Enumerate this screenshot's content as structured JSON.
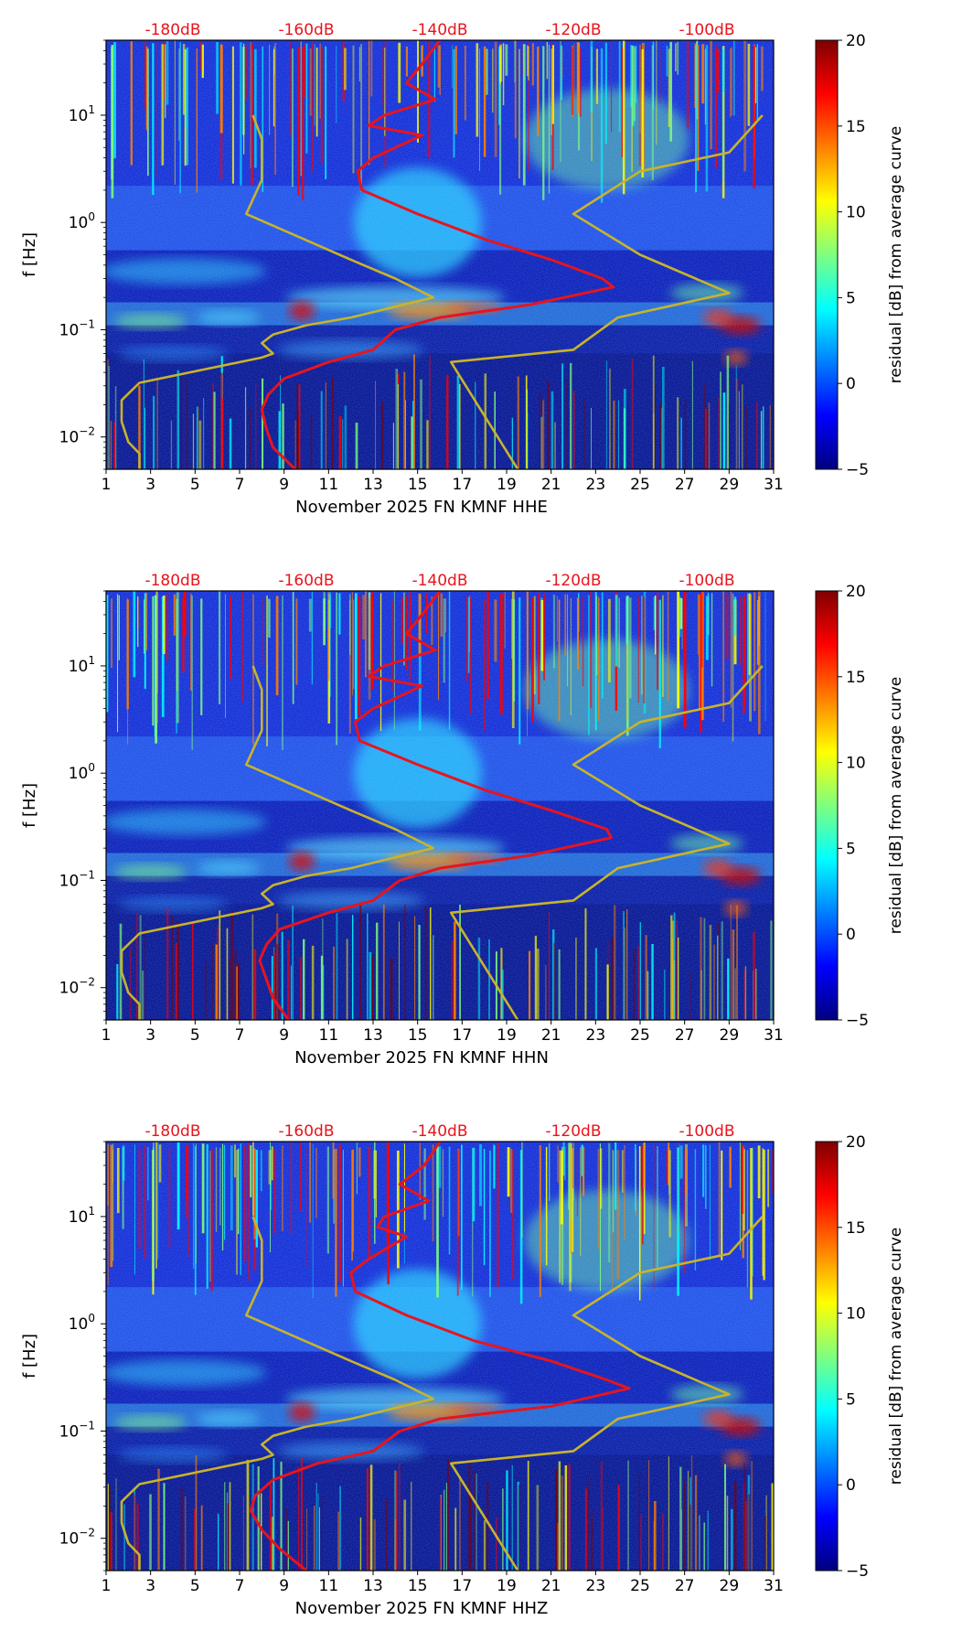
{
  "colors": {
    "power_curve": "#e8141c",
    "noise_model": "#c8b42a",
    "top_db_label": "#e8141c",
    "axis": "#000000"
  },
  "colormap": [
    "#00007f",
    "#0000ff",
    "#007fff",
    "#00ffff",
    "#7fff7f",
    "#ffff00",
    "#ff7f00",
    "#ff0000",
    "#7f0000"
  ],
  "chart_data": [
    {
      "type": "heatmap",
      "xlabel": "November 2025 FN KMNF  HHE",
      "ylabel": "f [Hz]",
      "xlim": [
        1,
        31
      ],
      "ylim": [
        0.005,
        50
      ],
      "yscale": "log",
      "xticks": [
        "1",
        "3",
        "5",
        "7",
        "9",
        "11",
        "13",
        "15",
        "17",
        "19",
        "21",
        "23",
        "25",
        "27",
        "29",
        "31"
      ],
      "yticks": [
        {
          "value": 0.01,
          "base": "10",
          "exp": "−2"
        },
        {
          "value": 0.1,
          "base": "10",
          "exp": "−1"
        },
        {
          "value": 1,
          "base": "10",
          "exp": "0"
        },
        {
          "value": 10,
          "base": "10",
          "exp": "1"
        }
      ],
      "top_labels": [
        {
          "x": 4,
          "text": "-180dB"
        },
        {
          "x": 10,
          "text": "-160dB"
        },
        {
          "x": 16,
          "text": "-140dB"
        },
        {
          "x": 22,
          "text": "-120dB"
        },
        {
          "x": 28,
          "text": "-100dB"
        }
      ],
      "colorbar": {
        "label": "residual [dB] from average curve",
        "min": -5,
        "max": 20,
        "ticks": [
          "20",
          "15",
          "10",
          "5",
          "0",
          "−5"
        ]
      },
      "series": [
        {
          "name": "average power curve",
          "points": [
            [
              16,
              50
            ],
            [
              15.2,
              30
            ],
            [
              14.5,
              20
            ],
            [
              15.8,
              14
            ],
            [
              13.5,
              10
            ],
            [
              12.8,
              8
            ],
            [
              15.2,
              6.5
            ],
            [
              13,
              4
            ],
            [
              12.3,
              3
            ],
            [
              12.5,
              2
            ],
            [
              15,
              1.2
            ],
            [
              18,
              0.7
            ],
            [
              21,
              0.45
            ],
            [
              23.3,
              0.3
            ],
            [
              23.8,
              0.25
            ],
            [
              20,
              0.17
            ],
            [
              16,
              0.13
            ],
            [
              14,
              0.1
            ],
            [
              13,
              0.065
            ],
            [
              11,
              0.05
            ],
            [
              9,
              0.035
            ],
            [
              8.3,
              0.025
            ],
            [
              8,
              0.018
            ],
            [
              8.2,
              0.012
            ],
            [
              8.5,
              0.008
            ],
            [
              9.5,
              0.005
            ]
          ]
        },
        {
          "name": "low noise model",
          "points": [
            [
              2.5,
              0.005
            ],
            [
              2.5,
              0.007
            ],
            [
              2.0,
              0.009
            ],
            [
              1.7,
              0.014
            ],
            [
              1.7,
              0.022
            ],
            [
              2.5,
              0.032
            ],
            [
              8,
              0.055
            ],
            [
              8.5,
              0.06
            ],
            [
              8,
              0.075
            ],
            [
              8.5,
              0.09
            ],
            [
              10,
              0.11
            ],
            [
              12,
              0.13
            ],
            [
              15.7,
              0.2
            ],
            [
              14,
              0.3
            ],
            [
              12,
              0.45
            ],
            [
              7.3,
              1.2
            ],
            [
              8,
              2.5
            ],
            [
              8,
              6
            ],
            [
              7.6,
              10
            ]
          ]
        },
        {
          "name": "high noise model",
          "points": [
            [
              19.5,
              0.005
            ],
            [
              16.5,
              0.05
            ],
            [
              22,
              0.065
            ],
            [
              24,
              0.13
            ],
            [
              29,
              0.22
            ],
            [
              25,
              0.5
            ],
            [
              22,
              1.2
            ],
            [
              25,
              3
            ],
            [
              29,
              4.5
            ],
            [
              30.5,
              10
            ]
          ]
        }
      ]
    },
    {
      "type": "heatmap",
      "xlabel": "November 2025 FN KMNF  HHN",
      "ylabel": "f [Hz]",
      "xlim": [
        1,
        31
      ],
      "ylim": [
        0.005,
        50
      ],
      "yscale": "log",
      "xticks": [
        "1",
        "3",
        "5",
        "7",
        "9",
        "11",
        "13",
        "15",
        "17",
        "19",
        "21",
        "23",
        "25",
        "27",
        "29",
        "31"
      ],
      "yticks": [
        {
          "value": 0.01,
          "base": "10",
          "exp": "−2"
        },
        {
          "value": 0.1,
          "base": "10",
          "exp": "−1"
        },
        {
          "value": 1,
          "base": "10",
          "exp": "0"
        },
        {
          "value": 10,
          "base": "10",
          "exp": "1"
        }
      ],
      "top_labels": [
        {
          "x": 4,
          "text": "-180dB"
        },
        {
          "x": 10,
          "text": "-160dB"
        },
        {
          "x": 16,
          "text": "-140dB"
        },
        {
          "x": 22,
          "text": "-120dB"
        },
        {
          "x": 28,
          "text": "-100dB"
        }
      ],
      "colorbar": {
        "label": "residual [dB] from average curve",
        "min": -5,
        "max": 20,
        "ticks": [
          "20",
          "15",
          "10",
          "5",
          "0",
          "−5"
        ]
      },
      "series": [
        {
          "name": "average power curve",
          "points": [
            [
              16,
              50
            ],
            [
              15.2,
              30
            ],
            [
              14.5,
              20
            ],
            [
              15.8,
              14
            ],
            [
              13.5,
              10
            ],
            [
              12.8,
              8
            ],
            [
              15.2,
              6.5
            ],
            [
              13,
              4
            ],
            [
              12.2,
              3
            ],
            [
              12.4,
              2
            ],
            [
              15,
              1.2
            ],
            [
              18,
              0.7
            ],
            [
              21,
              0.45
            ],
            [
              23.5,
              0.3
            ],
            [
              23.7,
              0.25
            ],
            [
              20,
              0.17
            ],
            [
              16,
              0.13
            ],
            [
              14.2,
              0.1
            ],
            [
              13,
              0.065
            ],
            [
              11,
              0.05
            ],
            [
              8.8,
              0.035
            ],
            [
              8.2,
              0.025
            ],
            [
              7.9,
              0.018
            ],
            [
              8.2,
              0.012
            ],
            [
              8.5,
              0.008
            ],
            [
              9.2,
              0.005
            ]
          ]
        },
        {
          "name": "low noise model",
          "points": [
            [
              2.5,
              0.005
            ],
            [
              2.5,
              0.007
            ],
            [
              2.0,
              0.009
            ],
            [
              1.7,
              0.014
            ],
            [
              1.7,
              0.022
            ],
            [
              2.5,
              0.032
            ],
            [
              8,
              0.055
            ],
            [
              8.5,
              0.06
            ],
            [
              8,
              0.075
            ],
            [
              8.5,
              0.09
            ],
            [
              10,
              0.11
            ],
            [
              12,
              0.13
            ],
            [
              15.7,
              0.2
            ],
            [
              14,
              0.3
            ],
            [
              12,
              0.45
            ],
            [
              7.3,
              1.2
            ],
            [
              8,
              2.5
            ],
            [
              8,
              6
            ],
            [
              7.6,
              10
            ]
          ]
        },
        {
          "name": "high noise model",
          "points": [
            [
              19.5,
              0.005
            ],
            [
              16.5,
              0.05
            ],
            [
              22,
              0.065
            ],
            [
              24,
              0.13
            ],
            [
              29,
              0.22
            ],
            [
              25,
              0.5
            ],
            [
              22,
              1.2
            ],
            [
              25,
              3
            ],
            [
              29,
              4.5
            ],
            [
              30.5,
              10
            ]
          ]
        }
      ]
    },
    {
      "type": "heatmap",
      "xlabel": "November 2025 FN KMNF  HHZ",
      "ylabel": "f [Hz]",
      "xlim": [
        1,
        31
      ],
      "ylim": [
        0.005,
        50
      ],
      "yscale": "log",
      "xticks": [
        "1",
        "3",
        "5",
        "7",
        "9",
        "11",
        "13",
        "15",
        "17",
        "19",
        "21",
        "23",
        "25",
        "27",
        "29",
        "31"
      ],
      "yticks": [
        {
          "value": 0.01,
          "base": "10",
          "exp": "−2"
        },
        {
          "value": 0.1,
          "base": "10",
          "exp": "−1"
        },
        {
          "value": 1,
          "base": "10",
          "exp": "0"
        },
        {
          "value": 10,
          "base": "10",
          "exp": "1"
        }
      ],
      "top_labels": [
        {
          "x": 4,
          "text": "-180dB"
        },
        {
          "x": 10,
          "text": "-160dB"
        },
        {
          "x": 16,
          "text": "-140dB"
        },
        {
          "x": 22,
          "text": "-120dB"
        },
        {
          "x": 28,
          "text": "-100dB"
        }
      ],
      "colorbar": {
        "label": "residual [dB] from average curve",
        "min": -5,
        "max": 20,
        "ticks": [
          "20",
          "15",
          "10",
          "5",
          "0",
          "−5"
        ]
      },
      "series": [
        {
          "name": "average power curve",
          "points": [
            [
              16,
              50
            ],
            [
              15.3,
              30
            ],
            [
              14.2,
              20
            ],
            [
              15.5,
              14
            ],
            [
              13.5,
              10
            ],
            [
              13.2,
              8
            ],
            [
              14.5,
              6.5
            ],
            [
              12.8,
              4
            ],
            [
              12,
              3
            ],
            [
              12.2,
              2
            ],
            [
              14.5,
              1.2
            ],
            [
              17.5,
              0.7
            ],
            [
              21,
              0.45
            ],
            [
              23.5,
              0.3
            ],
            [
              24.5,
              0.25
            ],
            [
              21,
              0.17
            ],
            [
              16,
              0.13
            ],
            [
              14.2,
              0.1
            ],
            [
              13,
              0.065
            ],
            [
              10.5,
              0.05
            ],
            [
              8.5,
              0.035
            ],
            [
              7.7,
              0.025
            ],
            [
              7.5,
              0.018
            ],
            [
              8,
              0.012
            ],
            [
              8.8,
              0.008
            ],
            [
              10,
              0.005
            ]
          ]
        },
        {
          "name": "low noise model",
          "points": [
            [
              2.5,
              0.005
            ],
            [
              2.5,
              0.007
            ],
            [
              2.0,
              0.009
            ],
            [
              1.7,
              0.014
            ],
            [
              1.7,
              0.022
            ],
            [
              2.5,
              0.032
            ],
            [
              8,
              0.055
            ],
            [
              8.5,
              0.06
            ],
            [
              8,
              0.075
            ],
            [
              8.5,
              0.09
            ],
            [
              10,
              0.11
            ],
            [
              12,
              0.13
            ],
            [
              15.7,
              0.2
            ],
            [
              14,
              0.3
            ],
            [
              12,
              0.45
            ],
            [
              7.3,
              1.2
            ],
            [
              8,
              2.5
            ],
            [
              8,
              6
            ],
            [
              7.6,
              10
            ]
          ]
        },
        {
          "name": "high noise model",
          "points": [
            [
              19.5,
              0.005
            ],
            [
              16.5,
              0.05
            ],
            [
              22,
              0.065
            ],
            [
              24,
              0.13
            ],
            [
              29,
              0.22
            ],
            [
              25,
              0.5
            ],
            [
              22,
              1.2
            ],
            [
              25,
              3
            ],
            [
              29,
              4.5
            ],
            [
              30.5,
              10
            ]
          ]
        }
      ]
    }
  ]
}
